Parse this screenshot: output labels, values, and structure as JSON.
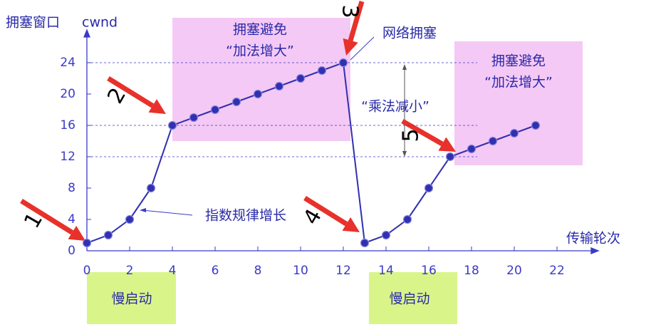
{
  "chart_data": {
    "type": "line",
    "y_label": "拥塞窗口",
    "y_unit": "cwnd",
    "x_label": "传输轮次",
    "x": [
      0,
      1,
      2,
      3,
      4,
      5,
      6,
      7,
      8,
      9,
      10,
      11,
      12,
      13,
      14,
      15,
      16,
      17,
      18,
      19,
      20,
      21
    ],
    "series": [
      {
        "color": "#3030b0",
        "values": [
          1,
          2,
          4,
          8,
          16,
          17,
          18,
          19,
          20,
          21,
          22,
          23,
          24,
          1,
          2,
          4,
          8,
          12,
          13,
          14,
          15,
          16
        ]
      }
    ],
    "xlim": [
      0,
      23.5
    ],
    "xticks": [
      0,
      2,
      4,
      6,
      8,
      10,
      12,
      14,
      16,
      18,
      20,
      22
    ],
    "ylim": [
      0,
      28
    ],
    "yticks": [
      0,
      4,
      8,
      12,
      16,
      20,
      24
    ],
    "reference_lines": [
      24,
      16,
      12
    ],
    "annotations": [
      "拥塞避免",
      "“加法增大”",
      "网络拥塞",
      "“乘法减小”",
      "指数规律增长",
      "拥塞避免",
      "“加法增大”",
      "慢启动",
      "慢启动"
    ],
    "steps": [
      "1",
      "2",
      "3",
      "4",
      "5"
    ]
  }
}
